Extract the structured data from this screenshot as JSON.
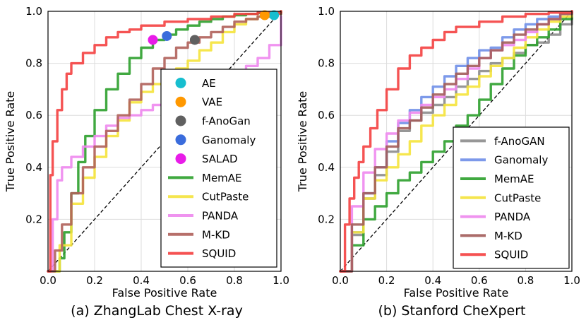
{
  "chart_data": [
    {
      "id": "a",
      "type": "line",
      "title": "(a) ZhangLab Chest X-ray",
      "xlabel": "False Positive Rate",
      "ylabel": "True Positive Rate",
      "xlim": [
        0,
        1
      ],
      "ylim": [
        0,
        1
      ],
      "xticks": [
        "0.0",
        "0.2",
        "0.4",
        "0.6",
        "0.8",
        "1.0"
      ],
      "yticks": [
        "0.2",
        "0.4",
        "0.6",
        "0.8",
        "1.0"
      ],
      "grid": true,
      "diagonal": "chance",
      "legend_position": "lower-right",
      "points": [
        {
          "name": "AE",
          "color": "#17becf",
          "x": 0.97,
          "y": 0.985
        },
        {
          "name": "VAE",
          "color": "#ff9800",
          "x": 0.93,
          "y": 0.985
        },
        {
          "name": "f-AnoGan",
          "color": "#606060",
          "x": 0.63,
          "y": 0.89
        },
        {
          "name": "Ganomaly",
          "color": "#3a6cdc",
          "x": 0.51,
          "y": 0.905
        },
        {
          "name": "SALAD",
          "color": "#e81ce8",
          "x": 0.45,
          "y": 0.89
        }
      ],
      "series": [
        {
          "name": "MemAE",
          "color": "#2ca02c",
          "x": [
            0,
            0.05,
            0.07,
            0.1,
            0.13,
            0.16,
            0.2,
            0.25,
            0.3,
            0.35,
            0.4,
            0.45,
            0.5,
            0.55,
            0.6,
            0.65,
            0.7,
            0.75,
            0.8,
            0.85,
            0.9,
            0.95,
            1.0
          ],
          "y": [
            0,
            0.05,
            0.15,
            0.3,
            0.42,
            0.52,
            0.62,
            0.7,
            0.76,
            0.82,
            0.86,
            0.89,
            0.91,
            0.93,
            0.945,
            0.96,
            0.97,
            0.98,
            0.985,
            0.99,
            0.993,
            0.996,
            1.0
          ]
        },
        {
          "name": "CutPaste",
          "color": "#f5e33b",
          "x": [
            0,
            0.05,
            0.1,
            0.15,
            0.2,
            0.25,
            0.3,
            0.35,
            0.4,
            0.45,
            0.5,
            0.55,
            0.6,
            0.65,
            0.7,
            0.75,
            0.8,
            0.85,
            0.9,
            0.95,
            1.0
          ],
          "y": [
            0,
            0.1,
            0.26,
            0.36,
            0.44,
            0.52,
            0.58,
            0.65,
            0.69,
            0.72,
            0.75,
            0.78,
            0.81,
            0.85,
            0.88,
            0.92,
            0.95,
            0.97,
            0.98,
            0.99,
            1.0
          ]
        },
        {
          "name": "PANDA",
          "color": "#ee88ee",
          "x": [
            0,
            0.02,
            0.04,
            0.06,
            0.1,
            0.15,
            0.2,
            0.25,
            0.3,
            0.35,
            0.4,
            0.45,
            0.5,
            0.55,
            0.6,
            0.65,
            0.7,
            0.75,
            0.8,
            0.85,
            0.9,
            0.95,
            1.0
          ],
          "y": [
            0,
            0.2,
            0.35,
            0.4,
            0.44,
            0.48,
            0.52,
            0.56,
            0.59,
            0.6,
            0.62,
            0.64,
            0.67,
            0.69,
            0.71,
            0.72,
            0.74,
            0.76,
            0.77,
            0.79,
            0.82,
            0.87,
            0.98
          ]
        },
        {
          "name": "M-KD",
          "color": "#b0605a",
          "x": [
            0,
            0.03,
            0.06,
            0.1,
            0.15,
            0.2,
            0.25,
            0.3,
            0.35,
            0.4,
            0.45,
            0.5,
            0.55,
            0.6,
            0.65,
            0.7,
            0.75,
            0.8,
            0.85,
            0.9,
            0.95,
            1.0
          ],
          "y": [
            0,
            0.08,
            0.18,
            0.3,
            0.4,
            0.48,
            0.54,
            0.6,
            0.66,
            0.72,
            0.78,
            0.82,
            0.86,
            0.88,
            0.9,
            0.92,
            0.94,
            0.96,
            0.97,
            0.98,
            0.99,
            1.0
          ]
        },
        {
          "name": "SQUID",
          "color": "#f44040",
          "x": [
            0,
            0.01,
            0.02,
            0.04,
            0.06,
            0.08,
            0.1,
            0.15,
            0.2,
            0.25,
            0.3,
            0.35,
            0.4,
            0.5,
            0.6,
            0.7,
            0.8,
            0.9,
            1.0
          ],
          "y": [
            0,
            0.37,
            0.5,
            0.62,
            0.7,
            0.76,
            0.8,
            0.84,
            0.87,
            0.9,
            0.92,
            0.93,
            0.945,
            0.96,
            0.97,
            0.98,
            0.99,
            0.995,
            1.0
          ]
        }
      ]
    },
    {
      "id": "b",
      "type": "line",
      "title": "(b) Stanford CheXpert",
      "xlabel": "False Positive Rate",
      "ylabel": "True Positive Rate",
      "xlim": [
        0,
        1
      ],
      "ylim": [
        0,
        1
      ],
      "xticks": [
        "0.0",
        "0.2",
        "0.4",
        "0.6",
        "0.8",
        "1.0"
      ],
      "yticks": [
        "0.2",
        "0.4",
        "0.6",
        "0.8",
        "1.0"
      ],
      "grid": true,
      "diagonal": "chance",
      "legend_position": "lower-right",
      "points": [],
      "series": [
        {
          "name": "f-AnoGAN",
          "color": "#8c8c8c",
          "x": [
            0,
            0.05,
            0.1,
            0.15,
            0.2,
            0.25,
            0.3,
            0.35,
            0.4,
            0.45,
            0.5,
            0.55,
            0.6,
            0.65,
            0.7,
            0.75,
            0.8,
            0.85,
            0.9,
            0.95,
            1.0
          ],
          "y": [
            0,
            0.14,
            0.28,
            0.37,
            0.46,
            0.54,
            0.58,
            0.61,
            0.64,
            0.67,
            0.71,
            0.74,
            0.77,
            0.8,
            0.82,
            0.84,
            0.87,
            0.88,
            0.91,
            0.95,
            1.0
          ]
        },
        {
          "name": "Ganomaly",
          "color": "#6f8fe8",
          "x": [
            0,
            0.05,
            0.1,
            0.15,
            0.2,
            0.25,
            0.3,
            0.35,
            0.4,
            0.45,
            0.5,
            0.55,
            0.6,
            0.65,
            0.7,
            0.75,
            0.8,
            0.85,
            0.9,
            0.95,
            1.0
          ],
          "y": [
            0,
            0.15,
            0.3,
            0.4,
            0.5,
            0.57,
            0.62,
            0.67,
            0.71,
            0.75,
            0.79,
            0.82,
            0.85,
            0.86,
            0.9,
            0.93,
            0.95,
            0.97,
            0.98,
            0.99,
            1.0
          ]
        },
        {
          "name": "MemAE",
          "color": "#2ca02c",
          "x": [
            0,
            0.05,
            0.1,
            0.15,
            0.2,
            0.25,
            0.3,
            0.35,
            0.4,
            0.45,
            0.5,
            0.55,
            0.6,
            0.65,
            0.7,
            0.75,
            0.8,
            0.85,
            0.9,
            0.95,
            1.0
          ],
          "y": [
            0,
            0.1,
            0.2,
            0.25,
            0.3,
            0.35,
            0.38,
            0.42,
            0.46,
            0.5,
            0.56,
            0.6,
            0.66,
            0.72,
            0.78,
            0.83,
            0.87,
            0.9,
            0.93,
            0.97,
            1.0
          ]
        },
        {
          "name": "CutPaste",
          "color": "#f5e33b",
          "x": [
            0,
            0.05,
            0.1,
            0.15,
            0.2,
            0.25,
            0.3,
            0.35,
            0.4,
            0.45,
            0.5,
            0.55,
            0.6,
            0.65,
            0.7,
            0.75,
            0.8,
            0.85,
            0.9,
            0.95,
            1.0
          ],
          "y": [
            0,
            0.15,
            0.28,
            0.35,
            0.4,
            0.45,
            0.5,
            0.56,
            0.6,
            0.64,
            0.68,
            0.71,
            0.75,
            0.79,
            0.82,
            0.86,
            0.9,
            0.93,
            0.96,
            0.98,
            1.0
          ]
        },
        {
          "name": "PANDA",
          "color": "#ee88ee",
          "x": [
            0,
            0.05,
            0.1,
            0.15,
            0.2,
            0.25,
            0.3,
            0.35,
            0.4,
            0.45,
            0.5,
            0.55,
            0.6,
            0.65,
            0.7,
            0.75,
            0.8,
            0.85,
            0.9,
            0.95,
            1.0
          ],
          "y": [
            0,
            0.25,
            0.38,
            0.47,
            0.53,
            0.58,
            0.61,
            0.64,
            0.67,
            0.7,
            0.74,
            0.78,
            0.82,
            0.85,
            0.87,
            0.89,
            0.92,
            0.95,
            0.97,
            0.99,
            1.0
          ]
        },
        {
          "name": "M-KD",
          "color": "#a35d5a",
          "x": [
            0,
            0.05,
            0.1,
            0.15,
            0.2,
            0.25,
            0.3,
            0.35,
            0.4,
            0.45,
            0.5,
            0.55,
            0.6,
            0.65,
            0.7,
            0.75,
            0.8,
            0.85,
            0.9,
            0.95,
            1.0
          ],
          "y": [
            0,
            0.18,
            0.3,
            0.4,
            0.48,
            0.55,
            0.58,
            0.63,
            0.68,
            0.72,
            0.76,
            0.79,
            0.82,
            0.85,
            0.88,
            0.91,
            0.93,
            0.95,
            0.97,
            0.99,
            1.0
          ]
        },
        {
          "name": "SQUID",
          "color": "#f44040",
          "x": [
            0,
            0.02,
            0.04,
            0.06,
            0.08,
            0.1,
            0.13,
            0.16,
            0.2,
            0.25,
            0.3,
            0.35,
            0.4,
            0.45,
            0.5,
            0.6,
            0.7,
            0.8,
            0.9,
            1.0
          ],
          "y": [
            0,
            0.18,
            0.28,
            0.36,
            0.42,
            0.48,
            0.55,
            0.62,
            0.7,
            0.78,
            0.83,
            0.86,
            0.89,
            0.92,
            0.94,
            0.96,
            0.98,
            0.99,
            0.995,
            1.0
          ]
        }
      ]
    }
  ]
}
